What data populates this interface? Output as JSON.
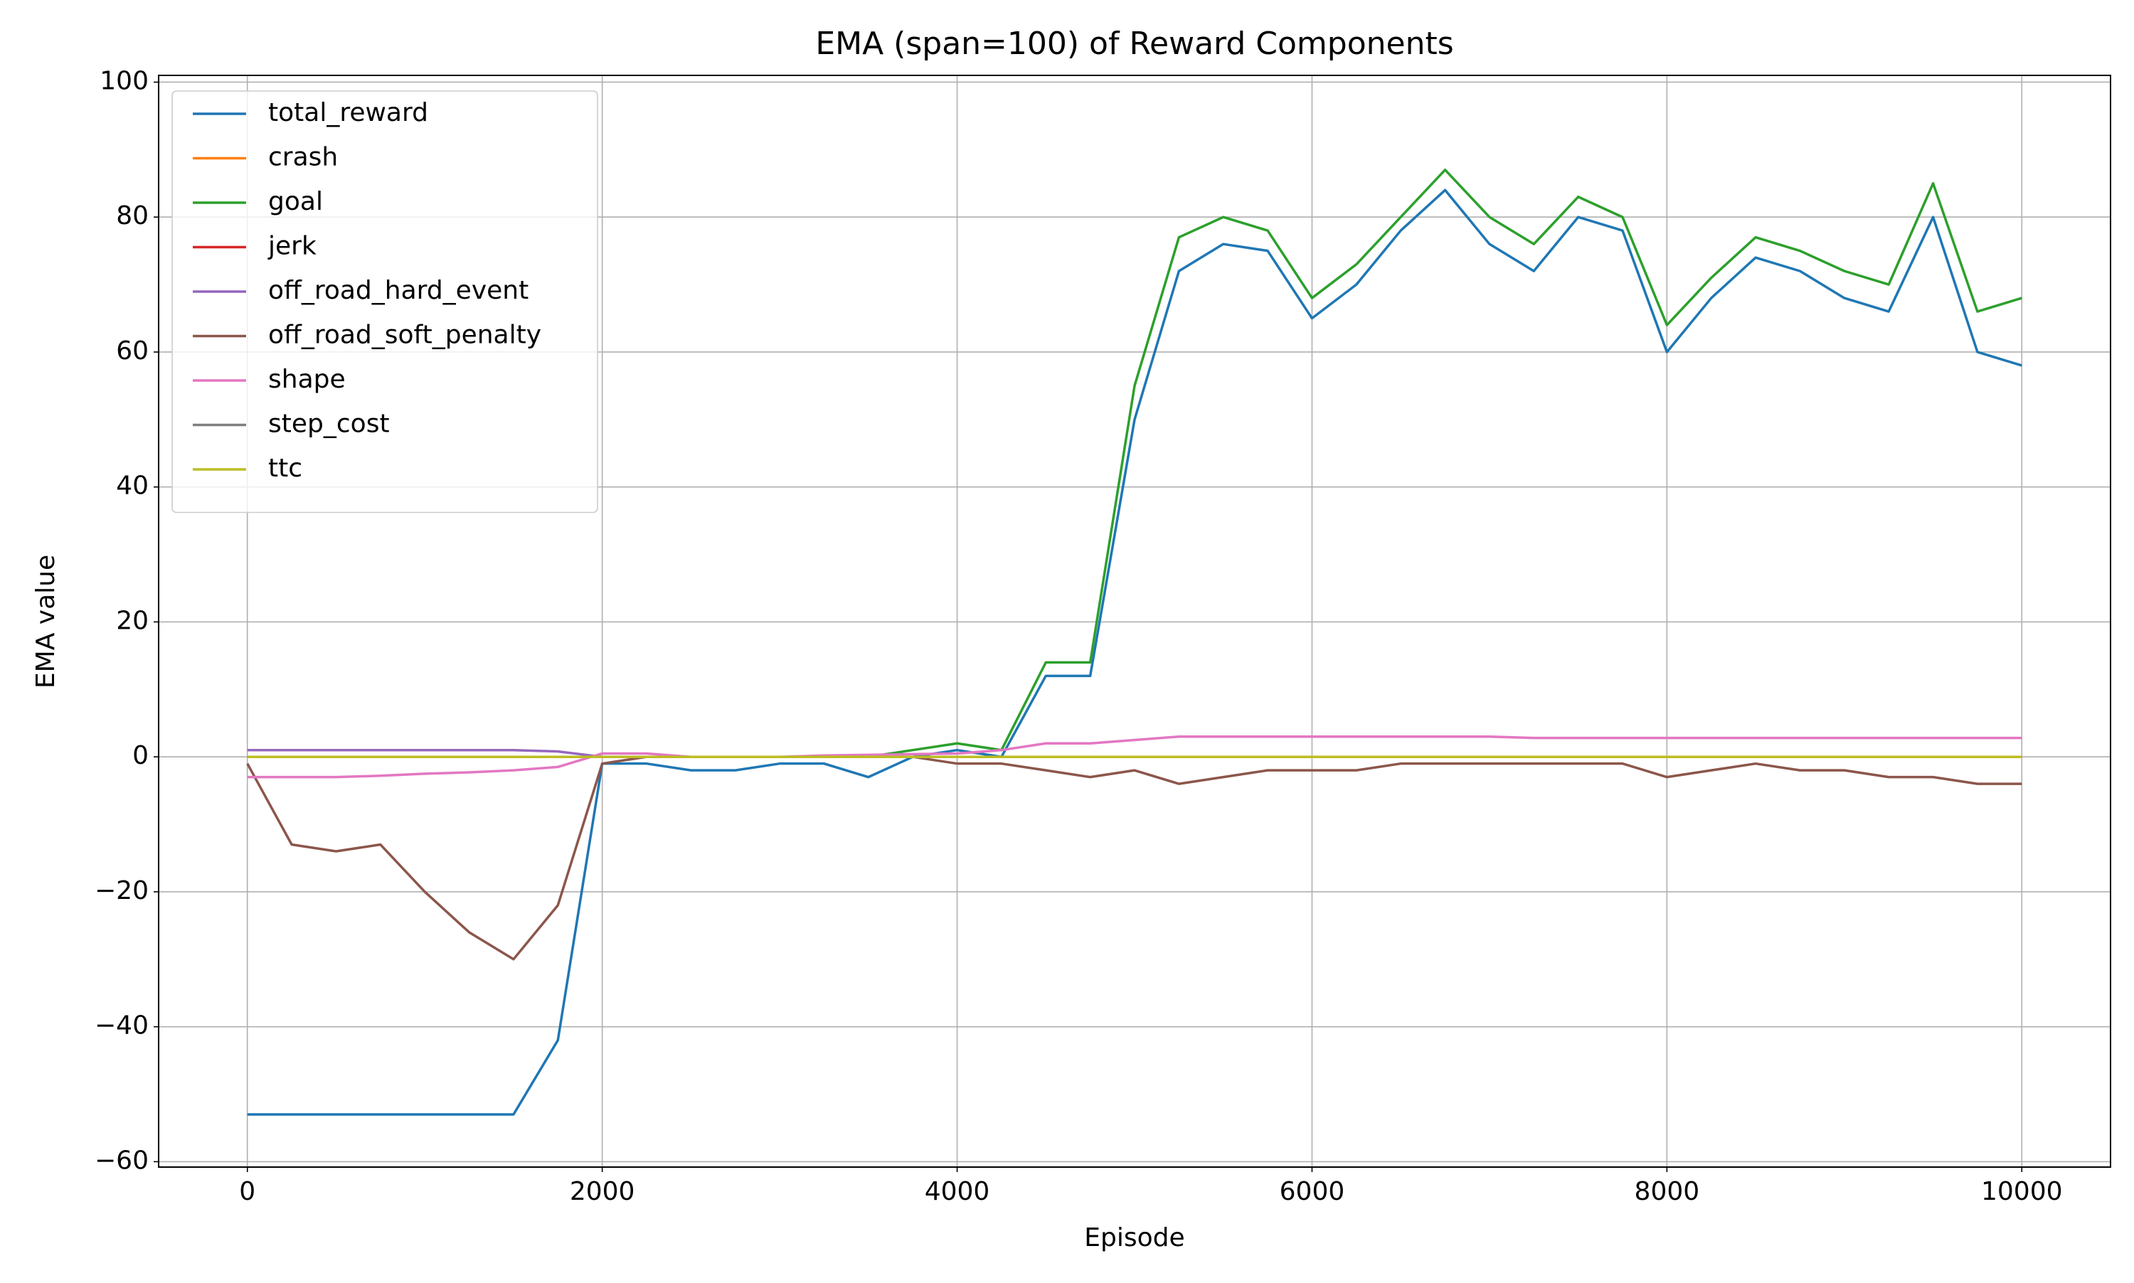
{
  "chart_data": {
    "type": "line",
    "title": "EMA (span=100) of Reward Components",
    "x_label": "Episode",
    "y_label": "EMA value",
    "grid": true,
    "legend": "upper left",
    "xlim": [
      -500,
      10500
    ],
    "ylim": [
      -60.8,
      101
    ],
    "xticks": [
      0,
      2000,
      4000,
      6000,
      8000,
      10000
    ],
    "yticks": [
      {
        "value": -60,
        "label": "−60"
      },
      {
        "value": -40,
        "label": "−40"
      },
      {
        "value": -20,
        "label": "−20"
      },
      0,
      20,
      40,
      60,
      80,
      100
    ],
    "x": [
      0,
      250,
      500,
      750,
      1000,
      1250,
      1500,
      1750,
      2000,
      2250,
      2500,
      2750,
      3000,
      3250,
      3500,
      3750,
      4000,
      4250,
      4500,
      4750,
      5000,
      5250,
      5500,
      5750,
      6000,
      6250,
      6500,
      6750,
      7000,
      7250,
      7500,
      7750,
      8000,
      8250,
      8500,
      8750,
      9000,
      9250,
      9500,
      9750,
      10000
    ],
    "series": [
      {
        "name": "total_reward",
        "color": "#1f77b4",
        "values": [
          -53,
          -53,
          -53,
          -53,
          -53,
          -53,
          -53,
          -42,
          -1,
          -1,
          -2,
          -2,
          -1,
          -1,
          -3,
          0,
          1,
          0,
          12,
          12,
          50,
          72,
          76,
          75,
          65,
          70,
          78,
          84,
          76,
          72,
          80,
          78,
          60,
          68,
          74,
          72,
          68,
          66,
          80,
          60,
          58
        ]
      },
      {
        "name": "crash",
        "color": "#ff7f0e",
        "values": [
          0,
          0,
          0,
          0,
          0,
          0,
          0,
          0,
          0,
          0,
          0,
          0,
          0,
          0,
          0,
          0,
          0,
          0,
          0,
          0,
          0,
          0,
          0,
          0,
          0,
          0,
          0,
          0,
          0,
          0,
          0,
          0,
          0,
          0,
          0,
          0,
          0,
          0,
          0,
          0,
          0
        ]
      },
      {
        "name": "goal",
        "color": "#2ca02c",
        "values": [
          0,
          0,
          0,
          0,
          0,
          0,
          0,
          0,
          0,
          0,
          0,
          0,
          0,
          0,
          0,
          1,
          2,
          1,
          14,
          14,
          55,
          77,
          80,
          78,
          68,
          73,
          80,
          87,
          80,
          76,
          83,
          80,
          64,
          71,
          77,
          75,
          72,
          70,
          85,
          66,
          68
        ]
      },
      {
        "name": "jerk",
        "color": "#d62728",
        "values": [
          0,
          0,
          0,
          0,
          0,
          0,
          0,
          0,
          0,
          0,
          0,
          0,
          0,
          0,
          0,
          0,
          0,
          0,
          0,
          0,
          0,
          0,
          0,
          0,
          0,
          0,
          0,
          0,
          0,
          0,
          0,
          0,
          0,
          0,
          0,
          0,
          0,
          0,
          0,
          0,
          0
        ]
      },
      {
        "name": "off_road_hard_event",
        "color": "#9467bd",
        "values": [
          1,
          1,
          1,
          1,
          1,
          1,
          1,
          0.8,
          0,
          0,
          0,
          0,
          0,
          0,
          0,
          0,
          0,
          0,
          0,
          0,
          0,
          0,
          0,
          0,
          0,
          0,
          0,
          0,
          0,
          0,
          0,
          0,
          0,
          0,
          0,
          0,
          0,
          0,
          0,
          0,
          0
        ]
      },
      {
        "name": "off_road_soft_penalty",
        "color": "#8c564b",
        "values": [
          -1,
          -13,
          -14,
          -13,
          -20,
          -26,
          -30,
          -22,
          -1,
          0,
          0,
          0,
          0,
          0,
          0,
          0,
          -1,
          -1,
          -2,
          -3,
          -2,
          -4,
          -3,
          -2,
          -2,
          -2,
          -1,
          -1,
          -1,
          -1,
          -1,
          -1,
          -3,
          -2,
          -1,
          -2,
          -2,
          -3,
          -3,
          -4,
          -4
        ]
      },
      {
        "name": "shape",
        "color": "#e377c2",
        "values": [
          -3,
          -3,
          -3,
          -2.8,
          -2.5,
          -2.3,
          -2,
          -1.5,
          0.5,
          0.5,
          0,
          0,
          0,
          0.2,
          0.3,
          0.4,
          0.5,
          1,
          2,
          2,
          2.5,
          3,
          3,
          3,
          3,
          3,
          3,
          3,
          3,
          2.8,
          2.8,
          2.8,
          2.8,
          2.8,
          2.8,
          2.8,
          2.8,
          2.8,
          2.8,
          2.8,
          2.8
        ]
      },
      {
        "name": "step_cost",
        "color": "#7f7f7f",
        "values": [
          0,
          0,
          0,
          0,
          0,
          0,
          0,
          0,
          0,
          0,
          0,
          0,
          0,
          0,
          0,
          0,
          0,
          0,
          0,
          0,
          0,
          0,
          0,
          0,
          0,
          0,
          0,
          0,
          0,
          0,
          0,
          0,
          0,
          0,
          0,
          0,
          0,
          0,
          0,
          0,
          0
        ]
      },
      {
        "name": "ttc",
        "color": "#bcbd22",
        "values": [
          0,
          0,
          0,
          0,
          0,
          0,
          0,
          0,
          0,
          0,
          0,
          0,
          0,
          0,
          0,
          0,
          0,
          0,
          0,
          0,
          0,
          0,
          0,
          0,
          0,
          0,
          0,
          0,
          0,
          0,
          0,
          0,
          0,
          0,
          0,
          0,
          0,
          0,
          0,
          0,
          0
        ]
      }
    ]
  }
}
